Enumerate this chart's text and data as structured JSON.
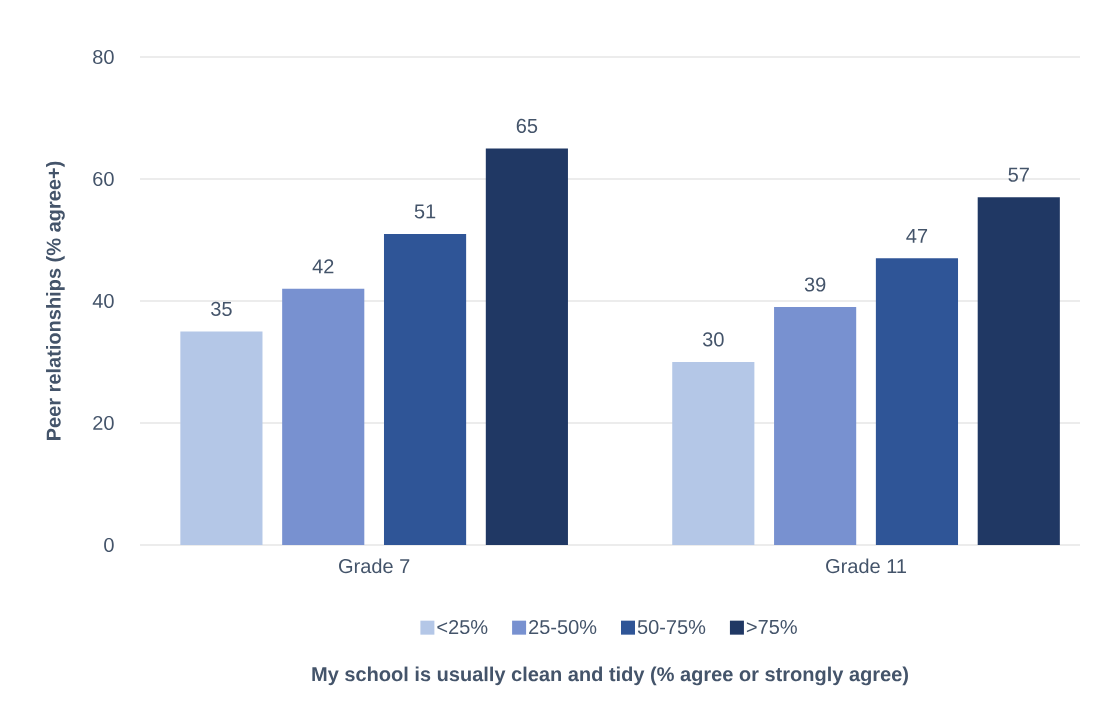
{
  "chart_data": {
    "type": "bar",
    "xlabel": "My school is usually clean and tidy (% agree or strongly agree)",
    "ylabel": "Peer relationships  (% agree+)",
    "categories": [
      "Grade  7",
      "Grade 11"
    ],
    "series": [
      {
        "name": "<25%",
        "color": "#b4c7e7",
        "values": [
          35,
          30
        ]
      },
      {
        "name": "25-50%",
        "color": "#7891d0",
        "values": [
          42,
          39
        ]
      },
      {
        "name": "50-75%",
        "color": "#2f5597",
        "values": [
          51,
          47
        ]
      },
      {
        "name": ">75%",
        "color": "#203864",
        "values": [
          65,
          57
        ]
      }
    ],
    "ylim": [
      0,
      80
    ],
    "yticks": [
      0,
      20,
      40,
      60,
      80
    ],
    "grid": "y",
    "legend": "bottom",
    "data_labels": true
  }
}
